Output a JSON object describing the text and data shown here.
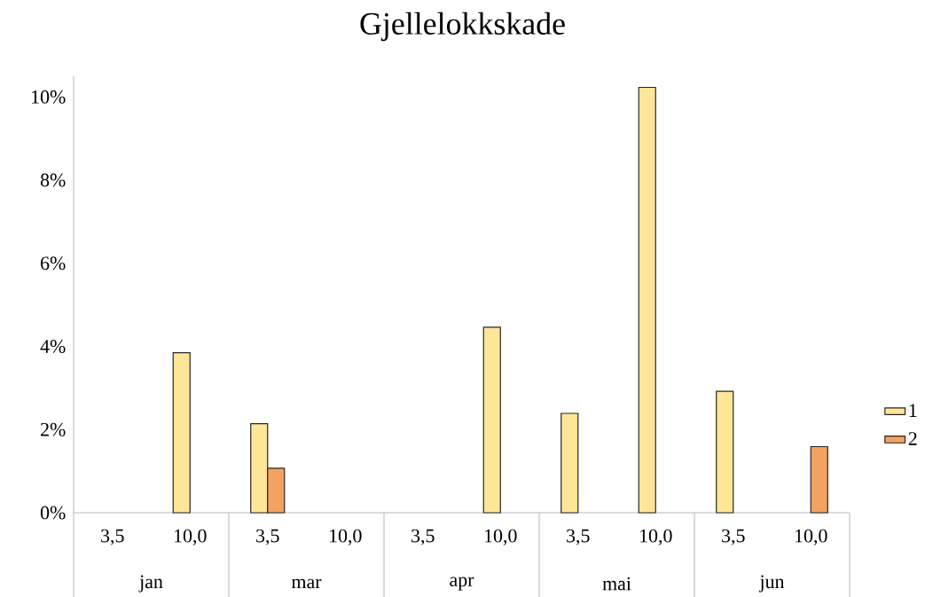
{
  "chart_data": {
    "type": "bar",
    "title": "Gjellelokkskade",
    "categories": [
      "3,5",
      "10,0",
      "3,5",
      "10,0",
      "3,5",
      "10,0",
      "3,5",
      "10,0",
      "3,5",
      "10,0"
    ],
    "annotations": [
      "jan",
      "mar",
      "apr",
      "mai",
      "jun"
    ],
    "series": [
      {
        "name": "1",
        "color": "#ffe699",
        "values": [
          null,
          3.85,
          2.14,
          null,
          null,
          4.46,
          2.39,
          10.23,
          2.92,
          null
        ]
      },
      {
        "name": "2",
        "color": "#f4a261",
        "values": [
          null,
          null,
          1.07,
          null,
          null,
          null,
          null,
          null,
          null,
          1.59
        ]
      }
    ],
    "ylim": [
      0,
      10.5
    ],
    "yticks": [
      {
        "value": 0,
        "label": "0%"
      },
      {
        "value": 2,
        "label": "2%"
      },
      {
        "value": 4,
        "label": "4%"
      },
      {
        "value": 6,
        "label": "6%"
      },
      {
        "value": 8,
        "label": "8%"
      },
      {
        "value": 10,
        "label": "10%"
      }
    ],
    "grid": false,
    "legend": "right"
  }
}
